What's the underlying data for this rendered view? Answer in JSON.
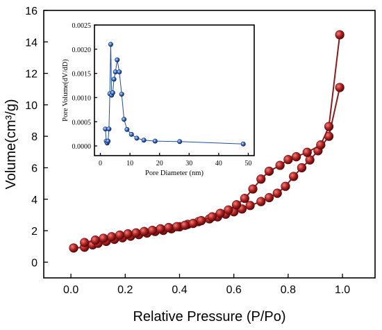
{
  "chart_data": [
    {
      "type": "line",
      "title": "",
      "xlabel": "Relative Pressure (P/Po)",
      "ylabel": "Volume(cm³/g)",
      "xlim": [
        -0.1,
        1.12
      ],
      "ylim": [
        -1,
        16
      ],
      "xticks": [
        0.0,
        0.2,
        0.4,
        0.6,
        0.8,
        1.0
      ],
      "xtick_labels": [
        "0.0",
        "0.2",
        "0.4",
        "0.6",
        "0.8",
        "1.0"
      ],
      "yticks": [
        0,
        2,
        4,
        6,
        8,
        10,
        12,
        14,
        16
      ],
      "ytick_labels": [
        "0",
        "2",
        "4",
        "6",
        "8",
        "10",
        "12",
        "14",
        "16"
      ],
      "grid": false,
      "marker_color": "#b22222",
      "line_color": "#8b1a1a",
      "series": [
        {
          "name": "",
          "x": [
            0.01,
            0.05,
            0.08,
            0.1,
            0.13,
            0.16,
            0.19,
            0.22,
            0.25,
            0.28,
            0.31,
            0.34,
            0.37,
            0.4,
            0.43,
            0.47,
            0.51,
            0.54,
            0.57,
            0.6,
            0.63,
            0.66,
            0.7,
            0.73,
            0.76,
            0.79,
            0.82,
            0.85,
            0.88,
            0.91,
            0.95,
            0.99
          ],
          "y": [
            0.9,
            0.95,
            1.1,
            1.2,
            1.32,
            1.45,
            1.55,
            1.65,
            1.75,
            1.85,
            1.95,
            2.02,
            2.12,
            2.25,
            2.4,
            2.58,
            2.75,
            2.88,
            3.05,
            3.2,
            3.38,
            3.6,
            3.85,
            4.1,
            4.38,
            4.82,
            5.45,
            6.0,
            6.5,
            7.08,
            8.0,
            11.1
          ]
        },
        {
          "name": "",
          "x": [
            0.99,
            0.95,
            0.92,
            0.87,
            0.83,
            0.8,
            0.77,
            0.73,
            0.7,
            0.67,
            0.64,
            0.61,
            0.58,
            0.55,
            0.52,
            0.48,
            0.45,
            0.42,
            0.39,
            0.36,
            0.33,
            0.3,
            0.27,
            0.24,
            0.21,
            0.18,
            0.15,
            0.12,
            0.09,
            0.05
          ],
          "y": [
            14.45,
            8.62,
            7.45,
            6.98,
            6.7,
            6.52,
            6.15,
            5.78,
            5.28,
            4.65,
            4.05,
            3.65,
            3.32,
            3.1,
            2.88,
            2.64,
            2.46,
            2.34,
            2.26,
            2.2,
            2.12,
            2.02,
            1.95,
            1.86,
            1.8,
            1.72,
            1.62,
            1.52,
            1.4,
            1.25
          ]
        }
      ]
    },
    {
      "type": "line",
      "title": "",
      "xlabel": "Pore Diameter (nm)",
      "ylabel": "Pore Volume(dV/dD)",
      "xlim": [
        -2,
        52
      ],
      "ylim": [
        -0.0002,
        0.0025
      ],
      "xticks": [
        0,
        10,
        20,
        30,
        40,
        50
      ],
      "xtick_labels": [
        "0",
        "10",
        "20",
        "30",
        "40",
        "50"
      ],
      "yticks": [
        0.0,
        0.0005,
        0.001,
        0.0015,
        0.002,
        0.0025
      ],
      "ytick_labels": [
        "0.0000",
        "0.0005",
        "0.0010",
        "0.0015",
        "0.0020",
        "0.0025"
      ],
      "grid": false,
      "marker_color": "#3a6fc4",
      "line_color": "#1f4e9e",
      "series": [
        {
          "name": "",
          "x": [
            1.7,
            2.0,
            2.3,
            2.6,
            2.9,
            3.2,
            3.5,
            3.8,
            4.2,
            4.6,
            5.1,
            5.7,
            6.4,
            7.2,
            8.0,
            9.0,
            10.5,
            12.3,
            14.7,
            18.5,
            26.8,
            48.3
          ],
          "y": [
            0.00035,
            0.0001,
            6e-05,
            0.0001,
            0.00035,
            0.00108,
            0.0021,
            0.00105,
            0.0011,
            0.00138,
            0.00153,
            0.00178,
            0.00153,
            0.00107,
            0.00055,
            0.00034,
            0.00024,
            0.00016,
            0.00012,
            0.0001,
            9e-05,
            4e-05
          ]
        }
      ]
    }
  ]
}
